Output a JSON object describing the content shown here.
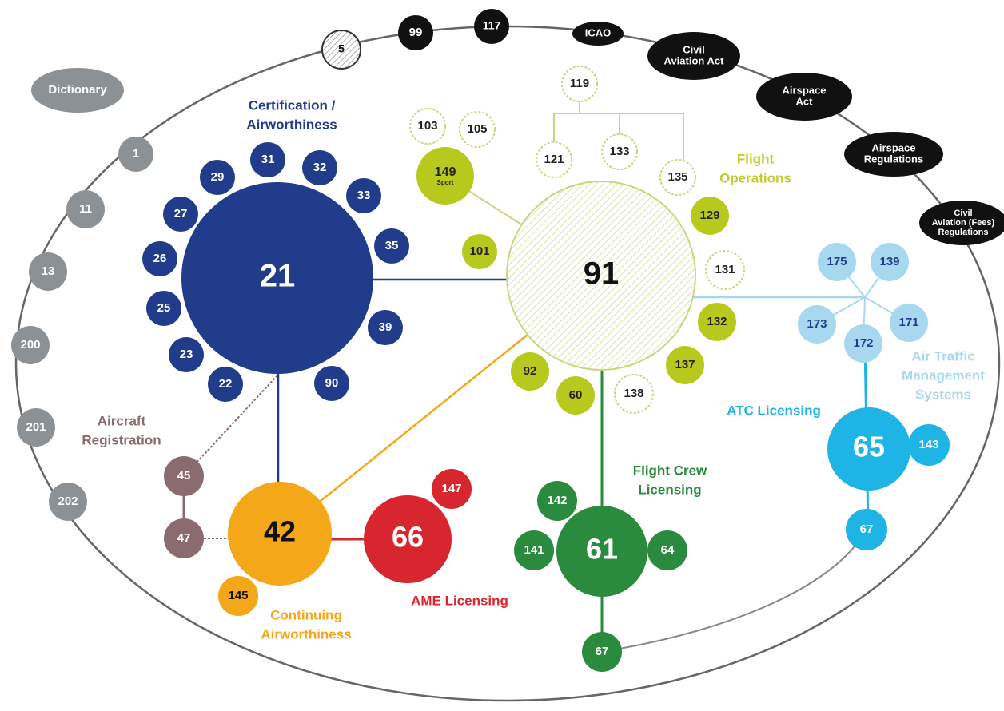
{
  "nodes": [
    {
      "lines": [
        "Dictionary"
      ]
    },
    {
      "lines": [
        "1"
      ]
    },
    {
      "lines": [
        "11"
      ]
    },
    {
      "lines": [
        "13"
      ]
    },
    {
      "lines": [
        "200"
      ]
    },
    {
      "lines": [
        "201"
      ]
    },
    {
      "lines": [
        "202"
      ]
    },
    {
      "lines": [
        "5"
      ]
    },
    {
      "lines": [
        "99"
      ]
    },
    {
      "lines": [
        "117"
      ]
    },
    {
      "lines": [
        "ICAO"
      ]
    },
    {
      "lines": [
        "Civil",
        "Aviation Act"
      ]
    },
    {
      "lines": [
        "Airspace",
        "Act"
      ]
    },
    {
      "lines": [
        "Airspace",
        "Regulations"
      ]
    },
    {
      "lines": [
        "Civil",
        "Aviation (Fees)",
        "Regulations"
      ]
    },
    {
      "lines": [
        "21"
      ]
    },
    {
      "lines": [
        "31"
      ]
    },
    {
      "lines": [
        "32"
      ]
    },
    {
      "lines": [
        "29"
      ]
    },
    {
      "lines": [
        "33"
      ]
    },
    {
      "lines": [
        "27"
      ]
    },
    {
      "lines": [
        "35"
      ]
    },
    {
      "lines": [
        "26"
      ]
    },
    {
      "lines": [
        "25"
      ]
    },
    {
      "lines": [
        "39"
      ]
    },
    {
      "lines": [
        "23"
      ]
    },
    {
      "lines": [
        "22"
      ]
    },
    {
      "lines": [
        "90"
      ]
    },
    {
      "lines": [
        "91"
      ]
    },
    {
      "lines": [
        "103"
      ]
    },
    {
      "lines": [
        "105"
      ]
    },
    {
      "lines": [
        "149",
        "Sport"
      ]
    },
    {
      "lines": [
        "119"
      ]
    },
    {
      "lines": [
        "121"
      ]
    },
    {
      "lines": [
        "133"
      ]
    },
    {
      "lines": [
        "135"
      ]
    },
    {
      "lines": [
        "101"
      ]
    },
    {
      "lines": [
        "129"
      ]
    },
    {
      "lines": [
        "131"
      ]
    },
    {
      "lines": [
        "132"
      ]
    },
    {
      "lines": [
        "137"
      ]
    },
    {
      "lines": [
        "138"
      ]
    },
    {
      "lines": [
        "60"
      ]
    },
    {
      "lines": [
        "92"
      ]
    },
    {
      "lines": [
        "175"
      ]
    },
    {
      "lines": [
        "139"
      ]
    },
    {
      "lines": [
        "173"
      ]
    },
    {
      "lines": [
        "171"
      ]
    },
    {
      "lines": [
        "172"
      ]
    },
    {
      "lines": [
        "65"
      ]
    },
    {
      "lines": [
        "143"
      ]
    },
    {
      "lines": [
        "67"
      ]
    },
    {
      "lines": [
        "61"
      ]
    },
    {
      "lines": [
        "142"
      ]
    },
    {
      "lines": [
        "141"
      ]
    },
    {
      "lines": [
        "64"
      ]
    },
    {
      "lines": [
        "67"
      ]
    },
    {
      "lines": [
        "42"
      ]
    },
    {
      "lines": [
        "145"
      ]
    },
    {
      "lines": [
        "66"
      ]
    },
    {
      "lines": [
        "147"
      ]
    },
    {
      "lines": [
        "45"
      ]
    },
    {
      "lines": [
        "47"
      ]
    }
  ],
  "groups": [
    {
      "lines": [
        "Certification /",
        "Airworthiness"
      ]
    },
    {
      "lines": [
        "Flight",
        "Operations"
      ]
    },
    {
      "lines": [
        "Air Traffic",
        "Management",
        "Systems"
      ]
    },
    {
      "lines": [
        "ATC Licensing"
      ]
    },
    {
      "lines": [
        "Flight Crew",
        "Licensing"
      ]
    },
    {
      "lines": [
        "AME Licensing"
      ]
    },
    {
      "lines": [
        "Continuing",
        "Airworthiness"
      ]
    },
    {
      "lines": [
        "Aircraft",
        "Registration"
      ]
    }
  ]
}
